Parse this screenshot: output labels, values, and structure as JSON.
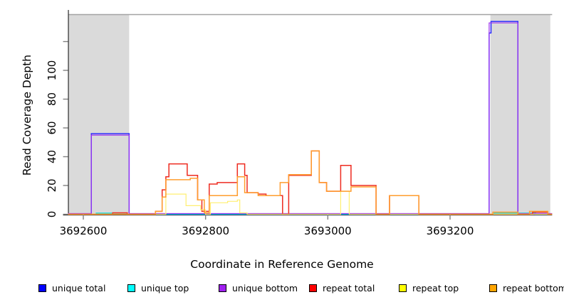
{
  "chart_data": {
    "type": "line",
    "subtype": "step-coverage",
    "title": "",
    "xlabel": "Coordinate in Reference Genome",
    "ylabel": "Read Coverage Depth",
    "xlim": [
      3692575,
      3693367
    ],
    "ylim": [
      0,
      139
    ],
    "x_ticks": [
      3692600,
      3692800,
      3693000,
      3693200
    ],
    "x_tick_labels": [
      "3692600",
      "3692800",
      "3693000",
      "3693200"
    ],
    "y_ticks": [
      0,
      20,
      40,
      60,
      80,
      100,
      120
    ],
    "y_tick_labels": [
      "0",
      "20",
      "40",
      "60",
      "80",
      "100",
      ""
    ],
    "grid": false,
    "legend_position": "bottom",
    "colors": {
      "shading": "#dadada",
      "top_boundary": "#a3a3a3",
      "axis": "#2b2b2b",
      "tick": "#808080"
    },
    "shaded_regions": [
      {
        "name": "masked-region-left",
        "x1": 3692575,
        "x2": 3692675
      },
      {
        "name": "masked-region-right",
        "x1": 3693266,
        "x2": 3693364
      }
    ],
    "top_boundary_value": 139,
    "series": [
      {
        "name": "unique total",
        "color": "#2020ff",
        "width": 1.4,
        "steps": [
          [
            3692575,
            0
          ],
          [
            3692613,
            56
          ],
          [
            3692675,
            0
          ],
          [
            3693264,
            126
          ],
          [
            3693267,
            134
          ],
          [
            3693311,
            0
          ],
          [
            3693367,
            0
          ]
        ]
      },
      {
        "name": "unique top",
        "color": "#00dcdc",
        "width": 1.2,
        "steps": [
          [
            3692575,
            0
          ],
          [
            3692621,
            0.8
          ],
          [
            3692671,
            0
          ],
          [
            3693272,
            0.8
          ],
          [
            3693340,
            0
          ],
          [
            3693367,
            0
          ]
        ]
      },
      {
        "name": "unique bottom",
        "color": "#9b30f0",
        "width": 1.2,
        "steps": [
          [
            3692575,
            0.5
          ],
          [
            3692613,
            55
          ],
          [
            3692675,
            0.5
          ],
          [
            3693264,
            133
          ],
          [
            3693311,
            0.5
          ],
          [
            3693367,
            0.5
          ]
        ]
      },
      {
        "name": "repeat total",
        "color": "#ee2b20",
        "width": 1.5,
        "steps": [
          [
            3692575,
            0
          ],
          [
            3692648,
            1
          ],
          [
            3692672,
            0
          ],
          [
            3692718,
            2
          ],
          [
            3692729,
            17
          ],
          [
            3692735,
            26
          ],
          [
            3692740,
            35
          ],
          [
            3692770,
            27
          ],
          [
            3692787,
            10
          ],
          [
            3692794,
            2
          ],
          [
            3692806,
            21
          ],
          [
            3692819,
            22
          ],
          [
            3692852,
            35
          ],
          [
            3692864,
            27
          ],
          [
            3692868,
            15
          ],
          [
            3692886,
            14
          ],
          [
            3692899,
            13
          ],
          [
            3692926,
            0
          ],
          [
            3692936,
            27
          ],
          [
            3692973,
            44
          ],
          [
            3692986,
            22
          ],
          [
            3692998,
            16
          ],
          [
            3693021,
            34
          ],
          [
            3693038,
            20
          ],
          [
            3693079,
            0
          ],
          [
            3693101,
            13
          ],
          [
            3693149,
            0
          ],
          [
            3693335,
            1.5
          ],
          [
            3693360,
            0
          ],
          [
            3693367,
            0
          ]
        ]
      },
      {
        "name": "repeat top",
        "color": "#ffef70",
        "width": 1.2,
        "steps": [
          [
            3692575,
            0
          ],
          [
            3692735,
            14
          ],
          [
            3692768,
            6
          ],
          [
            3692792,
            3
          ],
          [
            3692800,
            0
          ],
          [
            3692808,
            8
          ],
          [
            3692836,
            9
          ],
          [
            3692852,
            10
          ],
          [
            3692856,
            1
          ],
          [
            3692868,
            0
          ],
          [
            3693021,
            16
          ],
          [
            3693035,
            0
          ],
          [
            3693367,
            0
          ]
        ]
      },
      {
        "name": "repeat bottom",
        "color": "#ff9d2e",
        "width": 1.5,
        "steps": [
          [
            3692575,
            0
          ],
          [
            3692718,
            2
          ],
          [
            3692729,
            12
          ],
          [
            3692735,
            24
          ],
          [
            3692775,
            25
          ],
          [
            3692787,
            10
          ],
          [
            3692798,
            1
          ],
          [
            3692806,
            13
          ],
          [
            3692852,
            26
          ],
          [
            3692864,
            15
          ],
          [
            3692886,
            13
          ],
          [
            3692922,
            22
          ],
          [
            3692936,
            27.5
          ],
          [
            3692973,
            44
          ],
          [
            3692986,
            22
          ],
          [
            3692998,
            16
          ],
          [
            3693038,
            19
          ],
          [
            3693079,
            0
          ],
          [
            3693101,
            13
          ],
          [
            3693149,
            0
          ],
          [
            3693270,
            1.5
          ],
          [
            3693311,
            0
          ],
          [
            3693330,
            2
          ],
          [
            3693360,
            0
          ],
          [
            3693367,
            0
          ]
        ]
      }
    ],
    "legend": [
      {
        "label": "unique total",
        "color": "#0000ff"
      },
      {
        "label": "unique top",
        "color": "#00ffff"
      },
      {
        "label": "unique bottom",
        "color": "#a020f0"
      },
      {
        "label": "repeat total",
        "color": "#ff0000"
      },
      {
        "label": "repeat top",
        "color": "#ffff00"
      },
      {
        "label": "repeat bottom",
        "color": "#ffa500"
      }
    ]
  }
}
